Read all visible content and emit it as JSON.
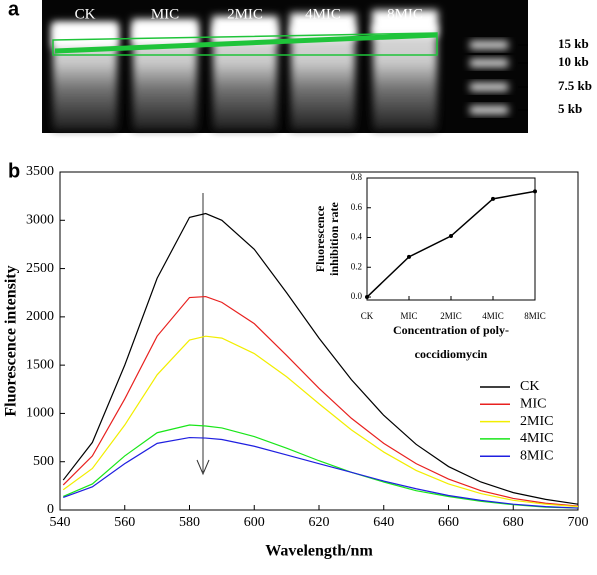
{
  "panels": {
    "a": "a",
    "b": "b"
  },
  "gel": {
    "lanes": [
      "CK",
      "MIC",
      "2MIC",
      "4MIC",
      "8MIC"
    ],
    "ladder": [
      "15 kb",
      "10 kb",
      "7.5 kb",
      "5 kb"
    ]
  },
  "chart_data": [
    {
      "type": "line",
      "xlabel": "Wavelength/nm",
      "ylabel": "Fluorescence intensity",
      "x": [
        541,
        550,
        560,
        570,
        580,
        585,
        590,
        600,
        610,
        620,
        630,
        640,
        650,
        660,
        670,
        680,
        690,
        700
      ],
      "series": [
        {
          "name": "CK",
          "color": "#000000",
          "values": [
            310,
            700,
            1500,
            2400,
            3030,
            3070,
            3000,
            2700,
            2250,
            1780,
            1350,
            980,
            680,
            450,
            290,
            180,
            110,
            60
          ]
        },
        {
          "name": "MIC",
          "color": "#e8211f",
          "values": [
            260,
            560,
            1150,
            1800,
            2200,
            2210,
            2150,
            1930,
            1600,
            1260,
            950,
            690,
            480,
            320,
            200,
            120,
            70,
            40
          ]
        },
        {
          "name": "2MIC",
          "color": "#f2ee00",
          "values": [
            210,
            430,
            880,
            1400,
            1760,
            1800,
            1780,
            1620,
            1380,
            1100,
            830,
            600,
            410,
            270,
            170,
            100,
            60,
            35
          ]
        },
        {
          "name": "4MIC",
          "color": "#19e619",
          "values": [
            140,
            270,
            560,
            800,
            880,
            870,
            850,
            760,
            640,
            510,
            390,
            290,
            200,
            140,
            90,
            55,
            30,
            20
          ]
        },
        {
          "name": "8MIC",
          "color": "#1f1fe0",
          "values": [
            130,
            240,
            480,
            690,
            750,
            745,
            730,
            660,
            570,
            480,
            390,
            300,
            220,
            150,
            100,
            60,
            35,
            20
          ]
        }
      ],
      "xlim": [
        540,
        700
      ],
      "xticks": [
        540,
        560,
        580,
        600,
        620,
        640,
        660,
        680,
        700
      ],
      "ylim": [
        0,
        3500
      ],
      "yticks": [
        0,
        500,
        1000,
        1500,
        2000,
        2500,
        3000,
        3500
      ],
      "legend": "right"
    },
    {
      "type": "line",
      "xlabel": [
        "Concentration of poly-",
        "coccidiomycin"
      ],
      "ylabel": [
        "Fluorescence",
        "inhibition rate"
      ],
      "categories": [
        "CK",
        "MIC",
        "2MIC",
        "4MIC",
        "8MIC"
      ],
      "values": [
        0,
        0.27,
        0.41,
        0.66,
        0.71
      ],
      "color": "#000000",
      "ylim": [
        -0.02,
        0.8
      ],
      "yticks": [
        {
          "value": 0,
          "label": "0.0"
        },
        0.2,
        0.4,
        0.6,
        0.8
      ]
    }
  ]
}
